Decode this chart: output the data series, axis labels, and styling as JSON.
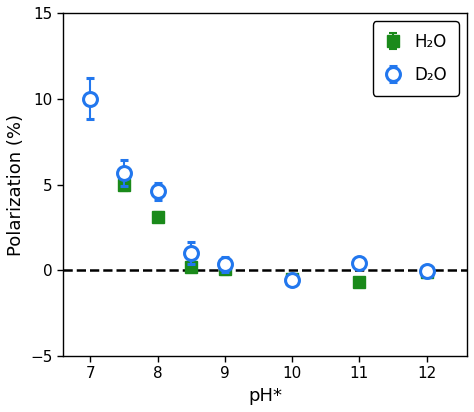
{
  "h2o_x": [
    7.5,
    8.0,
    8.5,
    9.0,
    10.0,
    11.0,
    12.0
  ],
  "h2o_y": [
    5.0,
    3.1,
    0.2,
    0.05,
    -0.5,
    -0.7,
    -0.1
  ],
  "h2o_yerr": [
    0.35,
    0.3,
    0.25,
    0.35,
    0.15,
    0.15,
    0.1
  ],
  "d2o_x": [
    7.0,
    7.5,
    8.0,
    8.5,
    9.0,
    10.0,
    11.0,
    12.0
  ],
  "d2o_y": [
    10.0,
    5.65,
    4.6,
    1.0,
    0.35,
    -0.55,
    0.45,
    -0.05
  ],
  "d2o_yerr": [
    1.2,
    0.75,
    0.5,
    0.65,
    0.45,
    0.2,
    0.2,
    0.12
  ],
  "h2o_color": "#1a8a1a",
  "d2o_color": "#2277ee",
  "xlabel": "pH*",
  "ylabel": "Polarization (%)",
  "xlim": [
    6.6,
    12.6
  ],
  "ylim": [
    -5,
    15
  ],
  "yticks": [
    -5,
    0,
    5,
    10,
    15
  ],
  "xticks": [
    7,
    8,
    9,
    10,
    11,
    12
  ],
  "legend_h2o": "H₂O",
  "legend_d2o": "D₂O",
  "dashed_y": 0
}
